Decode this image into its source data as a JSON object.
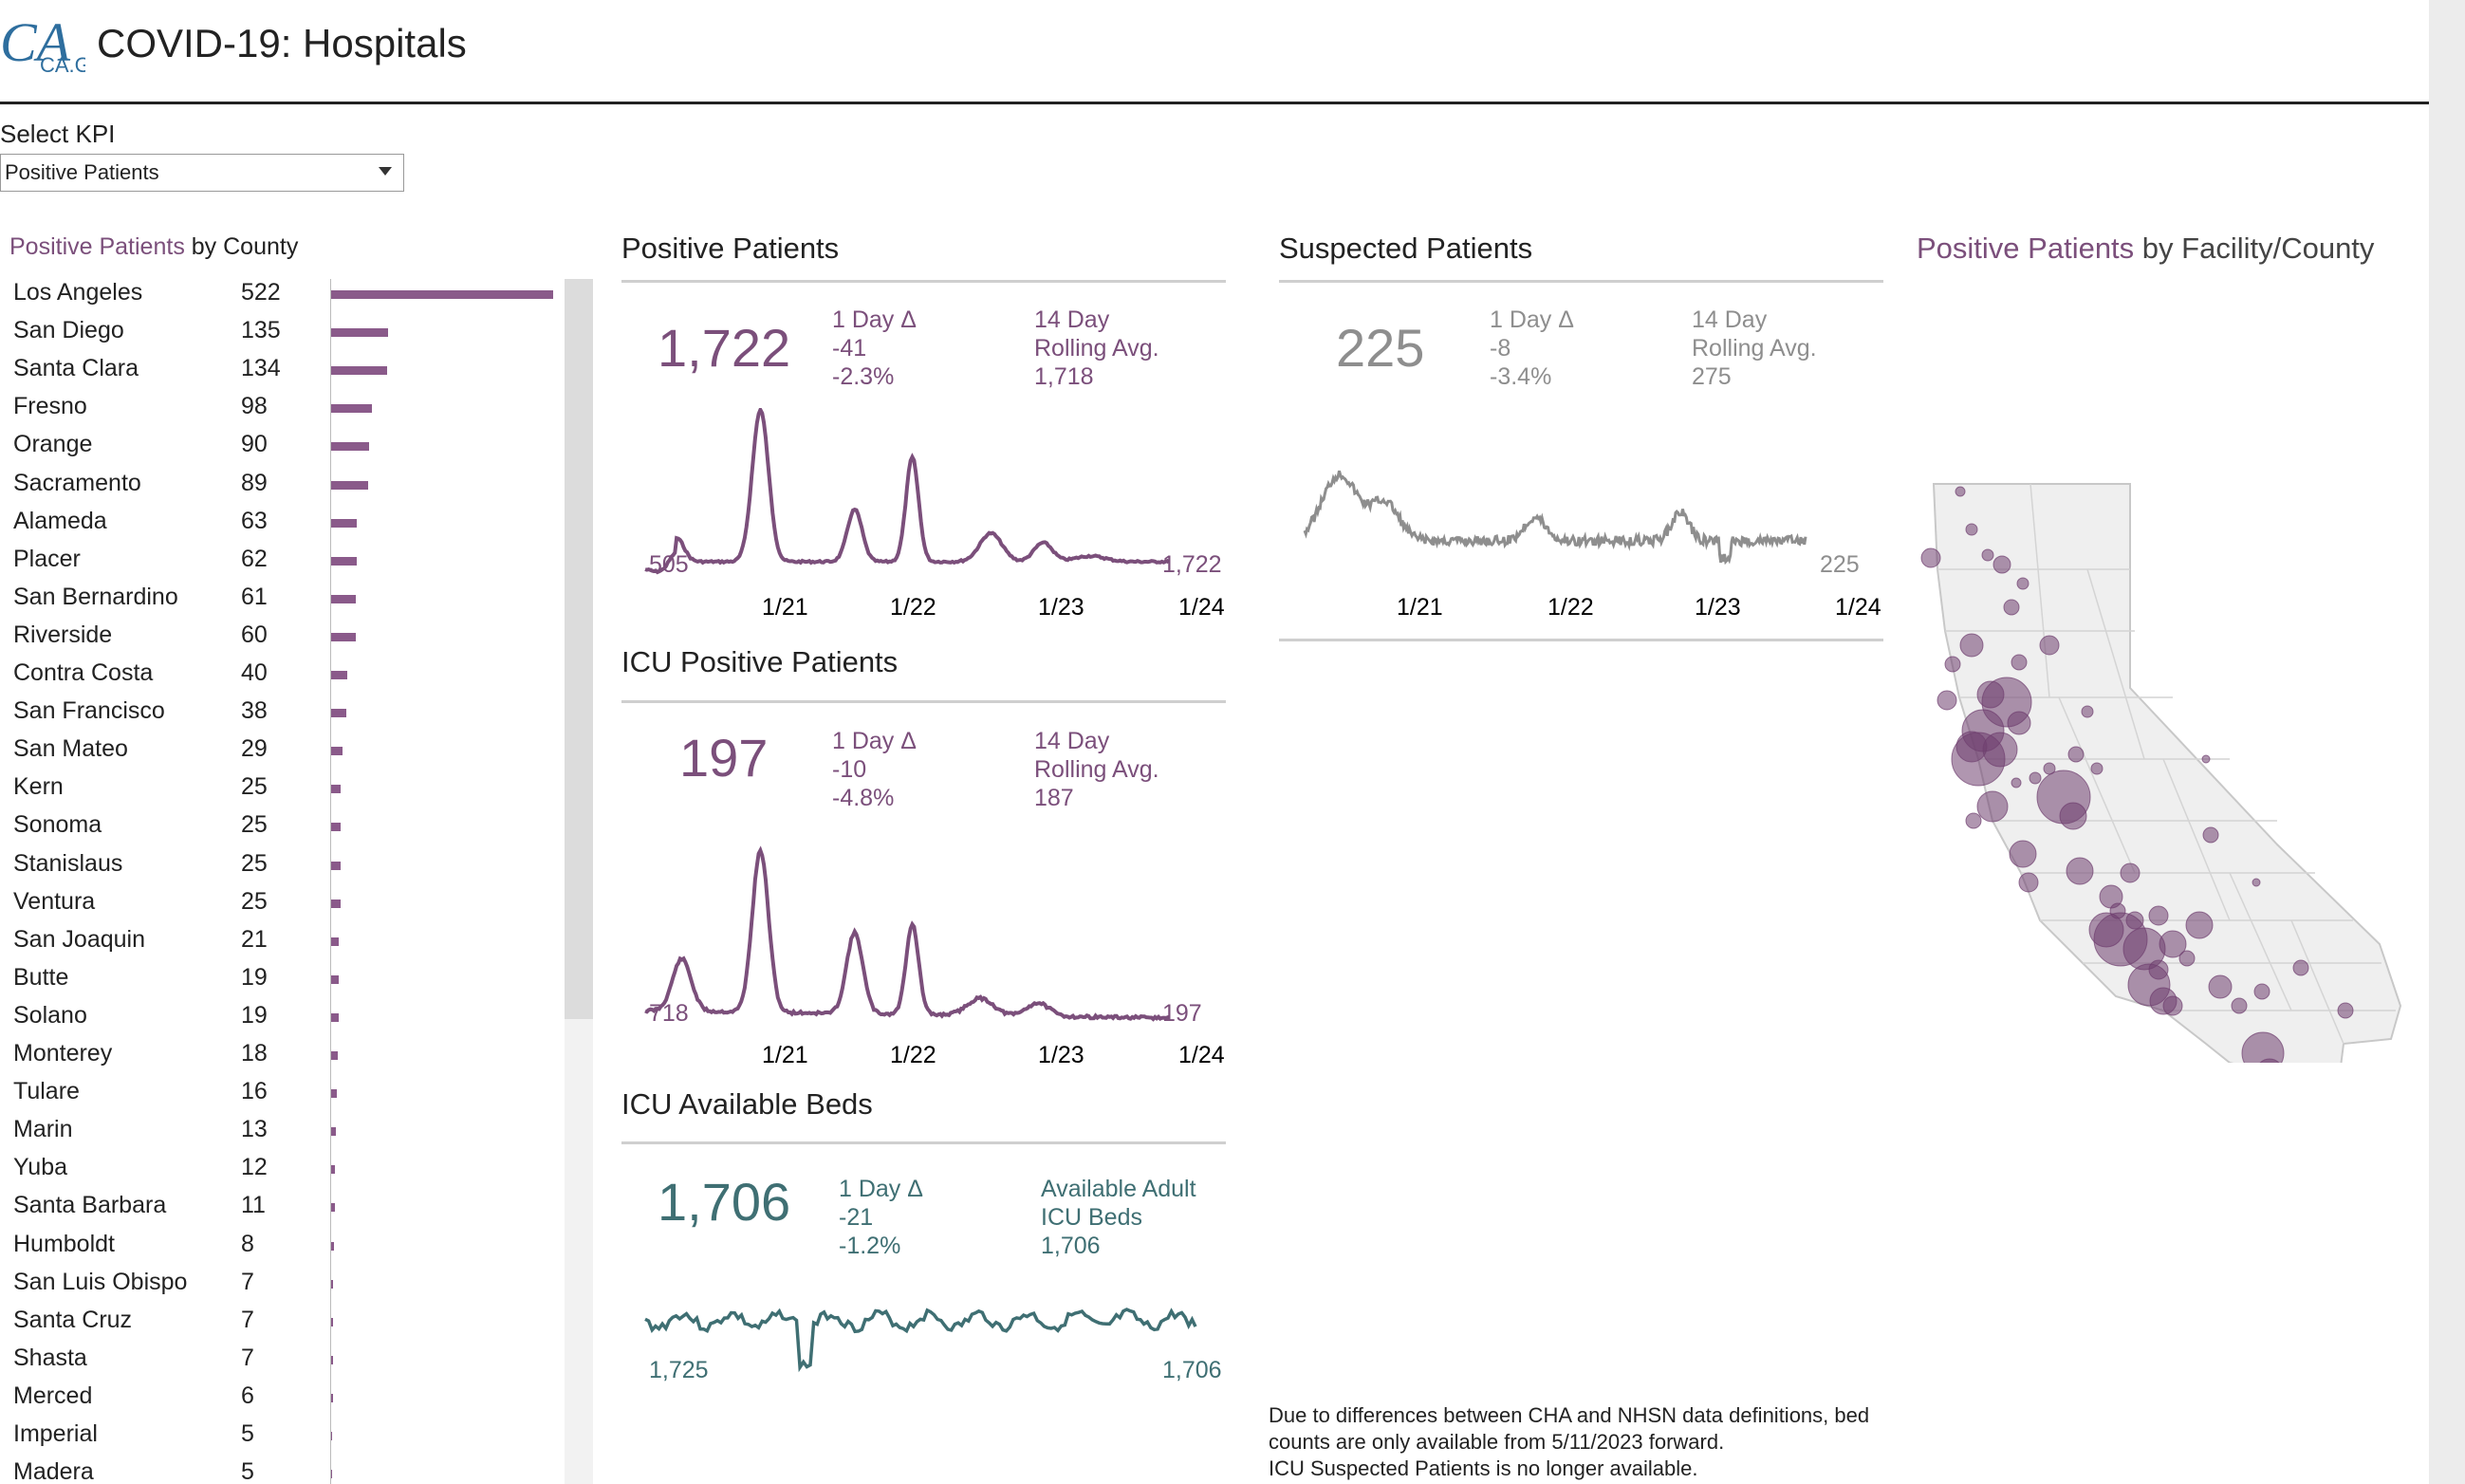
{
  "header": {
    "logo_text": "CA.GOV",
    "title": "COVID-19: Hospitals"
  },
  "kpi": {
    "label": "Select KPI",
    "selected": "Positive Patients"
  },
  "county_panel": {
    "title_highlight": "Positive Patients",
    "title_rest": " by County",
    "rows": [
      {
        "name": "Los Angeles",
        "value": 522
      },
      {
        "name": "San Diego",
        "value": 135
      },
      {
        "name": "Santa Clara",
        "value": 134
      },
      {
        "name": "Fresno",
        "value": 98
      },
      {
        "name": "Orange",
        "value": 90
      },
      {
        "name": "Sacramento",
        "value": 89
      },
      {
        "name": "Alameda",
        "value": 63
      },
      {
        "name": "Placer",
        "value": 62
      },
      {
        "name": "San Bernardino",
        "value": 61
      },
      {
        "name": "Riverside",
        "value": 60
      },
      {
        "name": "Contra Costa",
        "value": 40
      },
      {
        "name": "San Francisco",
        "value": 38
      },
      {
        "name": "San Mateo",
        "value": 29
      },
      {
        "name": "Kern",
        "value": 25
      },
      {
        "name": "Sonoma",
        "value": 25
      },
      {
        "name": "Stanislaus",
        "value": 25
      },
      {
        "name": "Ventura",
        "value": 25
      },
      {
        "name": "San Joaquin",
        "value": 21
      },
      {
        "name": "Butte",
        "value": 19
      },
      {
        "name": "Solano",
        "value": 19
      },
      {
        "name": "Monterey",
        "value": 18
      },
      {
        "name": "Tulare",
        "value": 16
      },
      {
        "name": "Marin",
        "value": 13
      },
      {
        "name": "Yuba",
        "value": 12
      },
      {
        "name": "Santa Barbara",
        "value": 11
      },
      {
        "name": "Humboldt",
        "value": 8
      },
      {
        "name": "San Luis Obispo",
        "value": 7
      },
      {
        "name": "Santa Cruz",
        "value": 7
      },
      {
        "name": "Shasta",
        "value": 7
      },
      {
        "name": "Merced",
        "value": 6
      },
      {
        "name": "Imperial",
        "value": 5
      },
      {
        "name": "Madera",
        "value": 5
      }
    ]
  },
  "positive": {
    "title": "Positive Patients",
    "big": "1,722",
    "delta_label": "1 Day Δ",
    "delta_abs": "-41",
    "delta_pct": "-2.3%",
    "avg_label1": "14 Day",
    "avg_label2": "Rolling Avg.",
    "avg_val": "1,718",
    "start_label": "505",
    "end_label": "1,722"
  },
  "icu_positive": {
    "title": "ICU Positive Patients",
    "big": "197",
    "delta_label": "1 Day Δ",
    "delta_abs": "-10",
    "delta_pct": "-4.8%",
    "avg_label1": "14 Day",
    "avg_label2": "Rolling Avg.",
    "avg_val": "187",
    "start_label": "718",
    "end_label": "197"
  },
  "icu_beds": {
    "title": "ICU Available Beds",
    "big": "1,706",
    "delta_label": "1 Day Δ",
    "delta_abs": "-21",
    "delta_pct": "-1.2%",
    "avg_label1": "Available Adult",
    "avg_label2": "ICU Beds",
    "avg_val": "1,706",
    "start_label": "1,725",
    "end_label": "1,706"
  },
  "suspected": {
    "title": "Suspected Patients",
    "big": "225",
    "delta_label": "1 Day Δ",
    "delta_abs": "-8",
    "delta_pct": "-3.4%",
    "avg_label1": "14 Day",
    "avg_label2": "Rolling Avg.",
    "avg_val": "275",
    "end_label": "225"
  },
  "x_ticks": [
    "1/21",
    "1/22",
    "1/23",
    "1/24"
  ],
  "map_panel": {
    "title_highlight": "Positive Patients",
    "title_rest": " by Facility/County"
  },
  "footnote": {
    "line1": "Due to differences between CHA and NHSN data definitions, bed",
    "line2": "counts are only available from 5/11/2023 forward.",
    "line3": "ICU Suspected Patients is no longer available."
  },
  "colors": {
    "accent": "#7b4f7b",
    "teal": "#3f6f73",
    "gray": "#8e8e8e",
    "bar": "#8a5a8a"
  }
}
